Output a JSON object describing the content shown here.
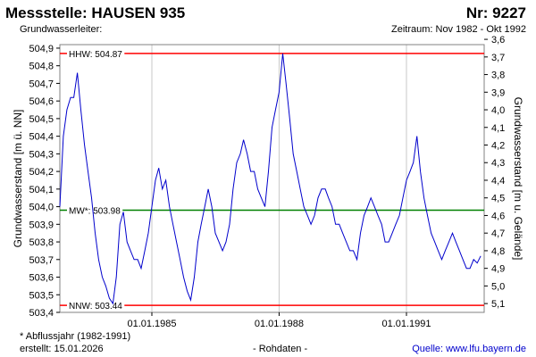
{
  "header": {
    "title": "Messstelle: HAUSEN 935",
    "number": "Nr: 9227",
    "aquifer": "Grundwasserleiter:",
    "period": "Zeitraum: Nov 1982 - Okt 1992"
  },
  "footer": {
    "note": "* Abflussjahr (1982-1991)",
    "created": "erstellt:  15.01.2026",
    "raw": "- Rohdaten -",
    "source": "Quelle: www.lfu.bayern.de"
  },
  "colors": {
    "series": "#0000cc",
    "extreme": "#ff0000",
    "mean": "#008000",
    "grid": "#c8c8c8"
  },
  "chart_data": {
    "type": "line",
    "ylabel": "Grundwasserstand [m ü. NN]",
    "ylabel_right": "Grundwasserstand [m u. Gelände]",
    "ylim": [
      503.4,
      504.92
    ],
    "right_ylim": [
      5.15,
      3.63
    ],
    "xlim": [
      "1982-11-01",
      "1992-10-31"
    ],
    "y_ticks": [
      "503,4",
      "503,5",
      "503,6",
      "503,7",
      "503,8",
      "503,9",
      "504,0",
      "504,1",
      "504,2",
      "504,3",
      "504,4",
      "504,5",
      "504,6",
      "504,7",
      "504,8",
      "504,9"
    ],
    "right_ticks": [
      "5,1",
      "5,0",
      "4,9",
      "4,8",
      "4,7",
      "4,6",
      "4,5",
      "4,4",
      "4,3",
      "4,2",
      "4,1",
      "4,0",
      "3,9",
      "3,8",
      "3,7",
      "3,6"
    ],
    "x_ticks": [
      {
        "date": "1985-01-01",
        "label": "01.01.1985"
      },
      {
        "date": "1988-01-01",
        "label": "01.01.1988"
      },
      {
        "date": "1991-01-01",
        "label": "01.01.1991"
      }
    ],
    "reference_lines": [
      {
        "label": "HHW: 504.87",
        "value": 504.87,
        "color": "#ff0000"
      },
      {
        "label": "MW*: 503.98",
        "value": 503.98,
        "color": "#008000"
      },
      {
        "label": "NNW: 503.44",
        "value": 503.44,
        "color": "#ff0000"
      }
    ],
    "series": [
      {
        "points": [
          [
            "1982-11-01",
            504.0
          ],
          [
            "1982-12-01",
            504.4
          ],
          [
            "1983-01-01",
            504.55
          ],
          [
            "1983-02-01",
            504.62
          ],
          [
            "1983-03-01",
            504.62
          ],
          [
            "1983-04-01",
            504.76
          ],
          [
            "1983-05-01",
            504.55
          ],
          [
            "1983-06-01",
            504.35
          ],
          [
            "1983-07-01",
            504.2
          ],
          [
            "1983-08-01",
            504.05
          ],
          [
            "1983-09-01",
            503.85
          ],
          [
            "1983-10-01",
            503.7
          ],
          [
            "1983-11-01",
            503.6
          ],
          [
            "1983-12-01",
            503.55
          ],
          [
            "1984-01-01",
            503.48
          ],
          [
            "1984-02-01",
            503.45
          ],
          [
            "1984-03-01",
            503.6
          ],
          [
            "1984-04-01",
            503.9
          ],
          [
            "1984-05-01",
            503.97
          ],
          [
            "1984-06-01",
            503.8
          ],
          [
            "1984-07-01",
            503.75
          ],
          [
            "1984-08-01",
            503.7
          ],
          [
            "1984-09-01",
            503.7
          ],
          [
            "1984-10-01",
            503.65
          ],
          [
            "1984-11-01",
            503.75
          ],
          [
            "1984-12-01",
            503.85
          ],
          [
            "1985-01-01",
            504.0
          ],
          [
            "1985-02-01",
            504.15
          ],
          [
            "1985-03-01",
            504.22
          ],
          [
            "1985-04-01",
            504.1
          ],
          [
            "1985-05-01",
            504.15
          ],
          [
            "1985-06-01",
            504.0
          ],
          [
            "1985-07-01",
            503.9
          ],
          [
            "1985-08-01",
            503.8
          ],
          [
            "1985-09-01",
            503.7
          ],
          [
            "1985-10-01",
            503.6
          ],
          [
            "1985-11-01",
            503.52
          ],
          [
            "1985-12-01",
            503.47
          ],
          [
            "1986-01-01",
            503.6
          ],
          [
            "1986-02-01",
            503.8
          ],
          [
            "1986-03-01",
            503.9
          ],
          [
            "1986-04-01",
            504.0
          ],
          [
            "1986-05-01",
            504.1
          ],
          [
            "1986-06-01",
            504.0
          ],
          [
            "1986-07-01",
            503.85
          ],
          [
            "1986-08-01",
            503.8
          ],
          [
            "1986-09-01",
            503.75
          ],
          [
            "1986-10-01",
            503.8
          ],
          [
            "1986-11-01",
            503.9
          ],
          [
            "1986-12-01",
            504.1
          ],
          [
            "1987-01-01",
            504.25
          ],
          [
            "1987-02-01",
            504.3
          ],
          [
            "1987-03-01",
            504.38
          ],
          [
            "1987-04-01",
            504.3
          ],
          [
            "1987-05-01",
            504.2
          ],
          [
            "1987-06-01",
            504.2
          ],
          [
            "1987-07-01",
            504.1
          ],
          [
            "1987-08-01",
            504.05
          ],
          [
            "1987-09-01",
            504.0
          ],
          [
            "1987-10-01",
            504.2
          ],
          [
            "1987-11-01",
            504.45
          ],
          [
            "1987-12-01",
            504.55
          ],
          [
            "1988-01-01",
            504.65
          ],
          [
            "1988-02-01",
            504.87
          ],
          [
            "1988-03-01",
            504.7
          ],
          [
            "1988-04-01",
            504.5
          ],
          [
            "1988-05-01",
            504.3
          ],
          [
            "1988-06-01",
            504.2
          ],
          [
            "1988-07-01",
            504.1
          ],
          [
            "1988-08-01",
            504.0
          ],
          [
            "1988-09-01",
            503.95
          ],
          [
            "1988-10-01",
            503.9
          ],
          [
            "1988-11-01",
            503.95
          ],
          [
            "1988-12-01",
            504.05
          ],
          [
            "1989-01-01",
            504.1
          ],
          [
            "1989-02-01",
            504.1
          ],
          [
            "1989-03-01",
            504.05
          ],
          [
            "1989-04-01",
            504.0
          ],
          [
            "1989-05-01",
            503.9
          ],
          [
            "1989-06-01",
            503.9
          ],
          [
            "1989-07-01",
            503.85
          ],
          [
            "1989-08-01",
            503.8
          ],
          [
            "1989-09-01",
            503.75
          ],
          [
            "1989-10-01",
            503.75
          ],
          [
            "1989-11-01",
            503.7
          ],
          [
            "1989-12-01",
            503.85
          ],
          [
            "1990-01-01",
            503.95
          ],
          [
            "1990-02-01",
            504.0
          ],
          [
            "1990-03-01",
            504.05
          ],
          [
            "1990-04-01",
            504.0
          ],
          [
            "1990-05-01",
            503.95
          ],
          [
            "1990-06-01",
            503.9
          ],
          [
            "1990-07-01",
            503.8
          ],
          [
            "1990-08-01",
            503.8
          ],
          [
            "1990-09-01",
            503.85
          ],
          [
            "1990-10-01",
            503.9
          ],
          [
            "1990-11-01",
            503.95
          ],
          [
            "1990-12-01",
            504.05
          ],
          [
            "1991-01-01",
            504.15
          ],
          [
            "1991-02-01",
            504.2
          ],
          [
            "1991-03-01",
            504.25
          ],
          [
            "1991-04-01",
            504.4
          ],
          [
            "1991-05-01",
            504.2
          ],
          [
            "1991-06-01",
            504.05
          ],
          [
            "1991-07-01",
            503.95
          ],
          [
            "1991-08-01",
            503.85
          ],
          [
            "1991-09-01",
            503.8
          ],
          [
            "1991-10-01",
            503.75
          ],
          [
            "1991-11-01",
            503.7
          ],
          [
            "1991-12-01",
            503.75
          ],
          [
            "1992-01-01",
            503.8
          ],
          [
            "1992-02-01",
            503.85
          ],
          [
            "1992-03-01",
            503.8
          ],
          [
            "1992-04-01",
            503.75
          ],
          [
            "1992-05-01",
            503.7
          ],
          [
            "1992-06-01",
            503.65
          ],
          [
            "1992-07-01",
            503.65
          ],
          [
            "1992-08-01",
            503.7
          ],
          [
            "1992-09-01",
            503.68
          ],
          [
            "1992-10-01",
            503.72
          ]
        ]
      }
    ]
  }
}
